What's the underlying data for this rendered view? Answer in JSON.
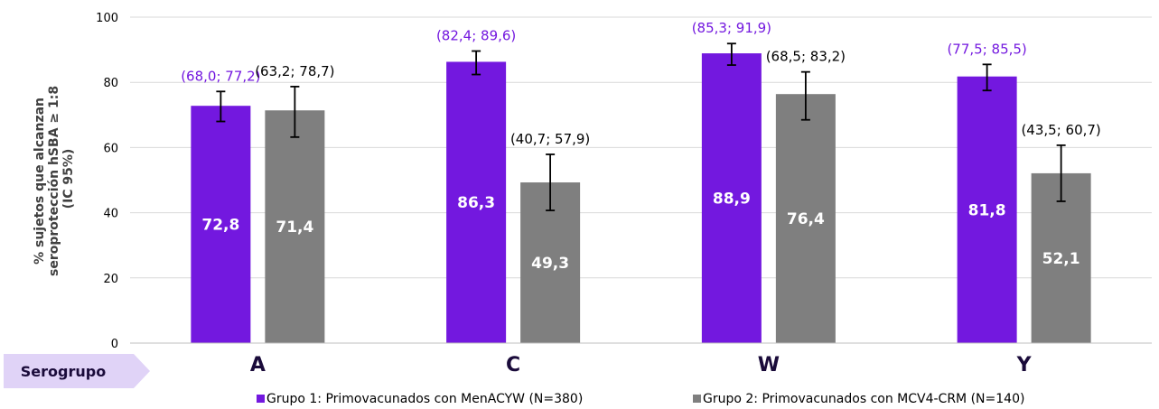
{
  "chart_data": {
    "type": "bar",
    "ylabel_lines": [
      "% sujetos que alcanzan",
      "seroprotección hSBA ≥ 1:8",
      "(IC 95%)"
    ],
    "ylim": [
      0,
      100
    ],
    "yticks": [
      0,
      20,
      40,
      60,
      80,
      100
    ],
    "grid": true,
    "legend_position": "bottom",
    "x_title": "Serogrupo",
    "categories": [
      "A",
      "C",
      "W",
      "Y"
    ],
    "series": [
      {
        "name": "Grupo 1: Primovacunados con MenACYW (N=380)",
        "color": "#7318df",
        "ci_color": "#7318df",
        "values": [
          72.8,
          86.3,
          88.9,
          81.8
        ],
        "value_labels": [
          "72,8",
          "86,3",
          "88,9",
          "81,8"
        ],
        "ci_low": [
          68.0,
          82.4,
          85.3,
          77.5
        ],
        "ci_high": [
          77.2,
          89.6,
          91.9,
          85.5
        ],
        "ci_labels": [
          "(68,0; 77,2)",
          "(82,4; 89,6)",
          "(85,3; 91,9)",
          "(77,5; 85,5)"
        ]
      },
      {
        "name": "Grupo 2: Primovacunados con MCV4-CRM (N=140)",
        "color": "#7f7f7f",
        "ci_color": "#000000",
        "values": [
          71.4,
          49.3,
          76.4,
          52.1
        ],
        "value_labels": [
          "71,4",
          "49,3",
          "76,4",
          "52,1"
        ],
        "ci_low": [
          63.2,
          40.7,
          68.5,
          43.5
        ],
        "ci_high": [
          78.7,
          57.9,
          83.2,
          60.7
        ],
        "ci_labels": [
          "(63,2; 78,7)",
          "(40,7; 57,9)",
          "(68,5; 83,2)",
          "(43,5; 60,7)"
        ]
      }
    ]
  },
  "colors": {
    "badge_fill": "#e0d3f7",
    "grid": "#d9d9d9",
    "axis": "#bfbfbf",
    "group1_ci_text": "#7318df",
    "group2_ci_text": "#000000"
  }
}
